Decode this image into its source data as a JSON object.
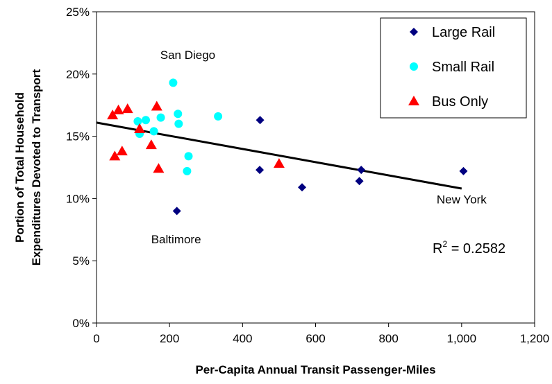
{
  "chart_data": {
    "type": "scatter",
    "xlabel": "Per-Capita Annual Transit Passenger-Miles",
    "ylabel_lines": [
      "Portion of Total Household",
      "Expenditures Devoted to Transport"
    ],
    "xlim": [
      0,
      1200
    ],
    "ylim": [
      0,
      25
    ],
    "x_ticks": [
      0,
      200,
      400,
      600,
      800,
      1000,
      1200
    ],
    "x_tick_labels": [
      "0",
      "200",
      "400",
      "600",
      "800",
      "1,000",
      "1,200"
    ],
    "y_ticks": [
      0,
      5,
      10,
      15,
      20,
      25
    ],
    "y_tick_labels": [
      "0%",
      "5%",
      "10%",
      "15%",
      "20%",
      "25%"
    ],
    "grid": false,
    "legend_position": "top-right",
    "series": [
      {
        "name": "Large Rail",
        "marker": "diamond",
        "color": "#000080",
        "points": [
          [
            220,
            9.0
          ],
          [
            447,
            12.3
          ],
          [
            448,
            16.3
          ],
          [
            563,
            10.9
          ],
          [
            720,
            11.4
          ],
          [
            725,
            12.3
          ],
          [
            1005,
            12.2
          ]
        ]
      },
      {
        "name": "Small Rail",
        "marker": "circle",
        "color": "#00FFFF",
        "points": [
          [
            113,
            16.2
          ],
          [
            118,
            15.2
          ],
          [
            135,
            16.3
          ],
          [
            157,
            15.4
          ],
          [
            176,
            16.5
          ],
          [
            210,
            19.3
          ],
          [
            223,
            16.8
          ],
          [
            225,
            16.0
          ],
          [
            248,
            12.2
          ],
          [
            252,
            13.4
          ],
          [
            333,
            16.6
          ]
        ]
      },
      {
        "name": "Bus Only",
        "marker": "triangle",
        "color": "#FF0000",
        "points": [
          [
            44,
            16.7
          ],
          [
            50,
            13.4
          ],
          [
            60,
            17.1
          ],
          [
            70,
            13.8
          ],
          [
            85,
            17.2
          ],
          [
            118,
            15.6
          ],
          [
            150,
            14.3
          ],
          [
            165,
            17.4
          ],
          [
            170,
            12.4
          ],
          [
            500,
            12.8
          ]
        ]
      }
    ],
    "trendline": {
      "x": [
        0,
        1000
      ],
      "y": [
        16.1,
        10.8
      ],
      "color": "#000000"
    },
    "annotations": [
      {
        "text": "San Diego",
        "x": 250,
        "y": 21.2
      },
      {
        "text": "New York",
        "x": 1000,
        "y": 9.6
      },
      {
        "text": "Baltimore",
        "x": 218,
        "y": 6.4
      }
    ],
    "r2": {
      "prefix": "R",
      "sup": "2",
      "suffix": " = 0.2582"
    }
  }
}
